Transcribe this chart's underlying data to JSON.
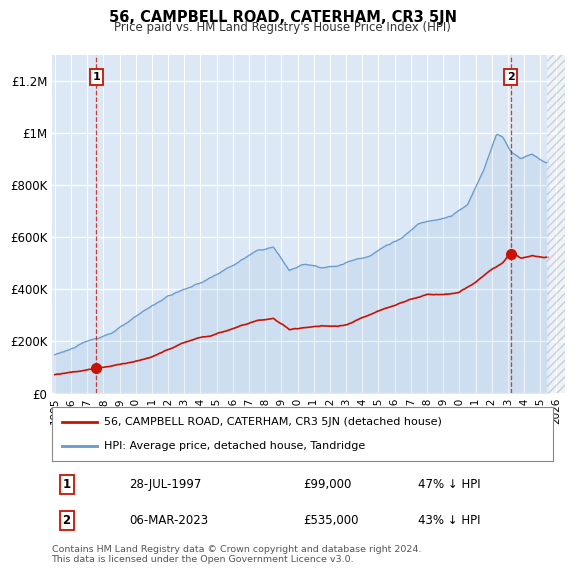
{
  "title": "56, CAMPBELL ROAD, CATERHAM, CR3 5JN",
  "subtitle": "Price paid vs. HM Land Registry's House Price Index (HPI)",
  "ylabel_ticks": [
    "£0",
    "£200K",
    "£400K",
    "£600K",
    "£800K",
    "£1M",
    "£1.2M"
  ],
  "ytick_values": [
    0,
    200000,
    400000,
    600000,
    800000,
    1000000,
    1200000
  ],
  "ylim": [
    0,
    1300000
  ],
  "xlim_start": 1994.8,
  "xlim_end": 2026.5,
  "xtick_years": [
    1995,
    1996,
    1997,
    1998,
    1999,
    2000,
    2001,
    2002,
    2003,
    2004,
    2005,
    2006,
    2007,
    2008,
    2009,
    2010,
    2011,
    2012,
    2013,
    2014,
    2015,
    2016,
    2017,
    2018,
    2019,
    2020,
    2021,
    2022,
    2023,
    2024,
    2025,
    2026
  ],
  "bg_color": "#dce8f5",
  "grid_color": "#ffffff",
  "hpi_color": "#6699cc",
  "price_color": "#cc1100",
  "sale1_year": 1997.57,
  "sale1_price": 99000,
  "sale2_year": 2023.17,
  "sale2_price": 535000,
  "legend_line1": "56, CAMPBELL ROAD, CATERHAM, CR3 5JN (detached house)",
  "legend_line2": "HPI: Average price, detached house, Tandridge",
  "table_row1": [
    "1",
    "28-JUL-1997",
    "£99,000",
    "47% ↓ HPI"
  ],
  "table_row2": [
    "2",
    "06-MAR-2023",
    "£535,000",
    "43% ↓ HPI"
  ],
  "footer": "Contains HM Land Registry data © Crown copyright and database right 2024.\nThis data is licensed under the Open Government Licence v3.0."
}
